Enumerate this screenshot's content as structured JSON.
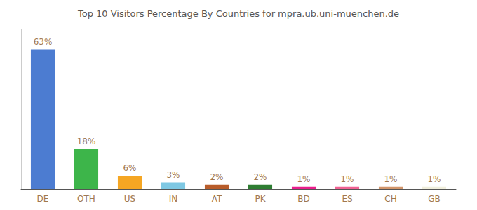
{
  "chart_data": {
    "type": "bar",
    "title": "Top 10 Visitors Percentage By Countries for mpra.ub.uni-muenchen.de",
    "categories": [
      "DE",
      "OTH",
      "US",
      "IN",
      "AT",
      "PK",
      "BD",
      "ES",
      "CH",
      "GB"
    ],
    "values": [
      63,
      18,
      6,
      3,
      2,
      2,
      1,
      1,
      1,
      1
    ],
    "value_labels": [
      "63%",
      "18%",
      "6%",
      "3%",
      "2%",
      "2%",
      "1%",
      "1%",
      "1%",
      "1%"
    ],
    "colors": [
      "#4c7cd1",
      "#3db54a",
      "#f5a623",
      "#7ec8e3",
      "#b85c2a",
      "#2e7d32",
      "#e91e8c",
      "#f06292",
      "#d2956b",
      "#f0eedc"
    ],
    "ylim": [
      0,
      72
    ],
    "grid": false,
    "tick_labels": "x"
  }
}
